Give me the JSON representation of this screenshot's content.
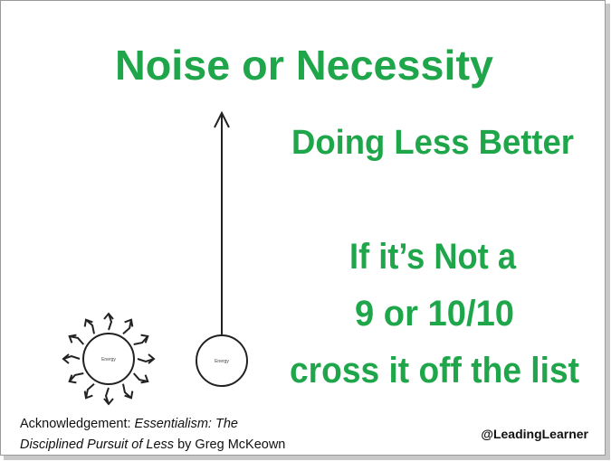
{
  "slide": {
    "title": "Noise or Necessity",
    "subtitle": "Doing Less Better",
    "message": [
      "If it’s Not a",
      "9 or 10/10",
      "cross it off the list"
    ],
    "diagram": {
      "scattered_label": "Energy",
      "focused_label": "Energy"
    },
    "acknowledgement": {
      "prefix": "Acknowledgement:",
      "book_title": [
        "Essentialism: The",
        "Disciplined Pursuit of Less"
      ],
      "suffix": "by Greg McKeown"
    },
    "handle": "@LeadingLearner"
  }
}
